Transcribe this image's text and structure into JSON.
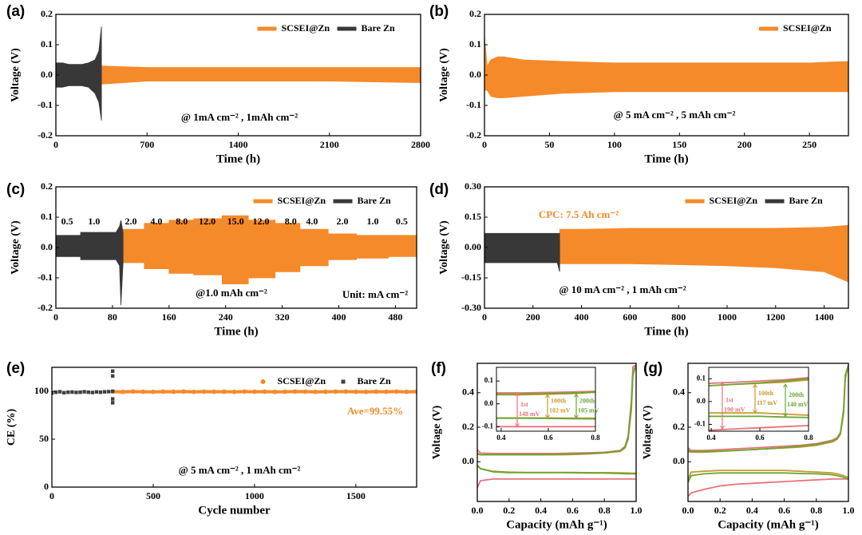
{
  "chart_data": [
    {
      "type": "band",
      "label": "(a)",
      "xlabel": "Time (h)",
      "ylabel": "Voltage (V)",
      "xlim": [
        0,
        2800
      ],
      "xticks": [
        0,
        700,
        1400,
        2100,
        2800
      ],
      "ylim": [
        -0.2,
        0.2
      ],
      "yticks": [
        -0.2,
        -0.1,
        {
          "value": 0,
          "label": "0.0"
        },
        0.1,
        0.2
      ],
      "annotations": [
        {
          "text": "@ 1mA cm⁻² , 1mAh cm⁻²"
        }
      ],
      "series": [
        {
          "name": "SCSEI@Zn",
          "color": "#f58a2a",
          "x": [
            350,
            700,
            1400,
            2100,
            2800
          ],
          "high": [
            0.03,
            0.025,
            0.025,
            0.025,
            0.025
          ],
          "low": [
            -0.03,
            -0.02,
            -0.02,
            -0.02,
            -0.025
          ]
        },
        {
          "name": "Bare Zn",
          "color": "#383838",
          "x": [
            0,
            50,
            100,
            150,
            200,
            250,
            300,
            330,
            350
          ],
          "high": [
            0.04,
            0.04,
            0.035,
            0.035,
            0.035,
            0.04,
            0.05,
            0.08,
            0.16
          ],
          "low": [
            -0.04,
            -0.04,
            -0.035,
            -0.035,
            -0.035,
            -0.04,
            -0.06,
            -0.09,
            -0.15
          ]
        }
      ]
    },
    {
      "type": "band",
      "label": "(b)",
      "xlabel": "Time (h)",
      "ylabel": "Voltage (V)",
      "xlim": [
        0,
        280
      ],
      "xticks": [
        0,
        50,
        100,
        150,
        200,
        250
      ],
      "ylim": [
        -0.2,
        0.2
      ],
      "yticks": [
        -0.2,
        -0.1,
        {
          "value": 0,
          "label": "0.0"
        },
        0.1,
        0.2
      ],
      "annotations": [
        {
          "text": "@ 5 mA cm⁻² , 5 mAh cm⁻²"
        }
      ],
      "series": [
        {
          "name": "SCSEI@Zn",
          "color": "#f58a2a",
          "x": [
            0,
            2,
            5,
            10,
            15,
            30,
            60,
            100,
            150,
            200,
            250,
            280
          ],
          "high": [
            0.13,
            0.03,
            0.05,
            0.06,
            0.06,
            0.05,
            0.045,
            0.04,
            0.04,
            0.04,
            0.04,
            0.045
          ],
          "low": [
            -0.05,
            -0.05,
            -0.07,
            -0.075,
            -0.075,
            -0.07,
            -0.06,
            -0.055,
            -0.055,
            -0.055,
            -0.055,
            -0.055
          ]
        }
      ]
    },
    {
      "type": "band",
      "label": "(c)",
      "xlabel": "Time (h)",
      "ylabel": "Voltage (V)",
      "xlim": [
        0,
        510
      ],
      "xticks": [
        0,
        80,
        160,
        240,
        320,
        400,
        480
      ],
      "ylim": [
        -0.2,
        0.2
      ],
      "yticks": [
        -0.2,
        -0.1,
        {
          "value": 0,
          "label": "0.0"
        },
        0.1,
        0.2
      ],
      "annotations": [
        {
          "text": "@1.0 mAh cm⁻²"
        },
        {
          "text": "Unit: mA cm⁻²"
        }
      ],
      "current_density": {
        "x": [
          16,
          54,
          106,
          142,
          178,
          214,
          254,
          290,
          332,
          362,
          405,
          448,
          489
        ],
        "labels": [
          "0.5",
          "1.0",
          "2.0",
          "4.0",
          "8.0",
          "12.0",
          "15.0",
          "12.0",
          "8.0",
          "4.0",
          "2.0",
          "1.0",
          "0.5"
        ]
      },
      "series": [
        {
          "name": "SCSEI@Zn",
          "color": "#f58a2a",
          "x": [
            95,
            125,
            125,
            160,
            160,
            195,
            195,
            235,
            235,
            272,
            272,
            310,
            310,
            345,
            345,
            385,
            385,
            425,
            425,
            470,
            470,
            510
          ],
          "high": [
            0.06,
            0.06,
            0.08,
            0.08,
            0.09,
            0.09,
            0.095,
            0.095,
            0.105,
            0.105,
            0.09,
            0.09,
            0.08,
            0.08,
            0.06,
            0.06,
            0.045,
            0.045,
            0.04,
            0.04,
            0.04,
            0.04
          ],
          "low": [
            -0.05,
            -0.05,
            -0.07,
            -0.07,
            -0.085,
            -0.085,
            -0.09,
            -0.09,
            -0.12,
            -0.12,
            -0.1,
            -0.1,
            -0.08,
            -0.08,
            -0.06,
            -0.06,
            -0.04,
            -0.04,
            -0.035,
            -0.035,
            -0.03,
            -0.03
          ]
        },
        {
          "name": "Bare Zn",
          "color": "#383838",
          "x": [
            0,
            35,
            35,
            85,
            90,
            92,
            95
          ],
          "high": [
            0.04,
            0.04,
            0.05,
            0.05,
            0.07,
            0.09,
            0.05
          ],
          "low": [
            -0.03,
            -0.03,
            -0.04,
            -0.04,
            -0.06,
            -0.19,
            -0.05
          ]
        }
      ]
    },
    {
      "type": "band",
      "label": "(d)",
      "xlabel": "Time (h)",
      "ylabel": "Voltage (V)",
      "xlim": [
        0,
        1500
      ],
      "xticks": [
        0,
        200,
        400,
        600,
        800,
        1000,
        1200,
        1400
      ],
      "ylim": [
        -0.3,
        0.3
      ],
      "yticks": [
        {
          "value": -0.3,
          "label": "-0.30"
        },
        -0.15,
        {
          "value": 0,
          "label": "0.00"
        },
        0.15,
        {
          "value": 0.3,
          "label": "0.30"
        }
      ],
      "annotations": [
        {
          "text": "CPC: 7.5 Ah cm⁻²",
          "color": "#f58a2a"
        },
        {
          "text": "@ 10 mA cm⁻² , 1 mAh cm⁻²"
        }
      ],
      "series": [
        {
          "name": "SCSEI@Zn",
          "color": "#f58a2a",
          "x": [
            310,
            400,
            600,
            800,
            1000,
            1200,
            1400,
            1500
          ],
          "high": [
            0.09,
            0.09,
            0.095,
            0.095,
            0.095,
            0.095,
            0.1,
            0.11
          ],
          "low": [
            -0.08,
            -0.08,
            -0.08,
            -0.085,
            -0.09,
            -0.1,
            -0.12,
            -0.17
          ]
        },
        {
          "name": "Bare Zn",
          "color": "#383838",
          "x": [
            0,
            300,
            310
          ],
          "high": [
            0.07,
            0.07,
            0.07
          ],
          "low": [
            -0.075,
            -0.075,
            -0.12
          ]
        }
      ]
    },
    {
      "type": "scatter",
      "label": "(e)",
      "xlabel": "Cycle number",
      "ylabel": "CE (%)",
      "xlim": [
        0,
        1800
      ],
      "xticks": [
        0,
        500,
        1000,
        1500
      ],
      "ylim": [
        0,
        125
      ],
      "yticks": [
        0,
        50,
        100
      ],
      "annotations": [
        {
          "text": "Ave=99.55%",
          "color": "#f58a2a"
        },
        {
          "text": "@ 5 mA cm⁻² , 1 mAh cm⁻²"
        }
      ],
      "series": [
        {
          "name": "SCSEI@Zn",
          "color": "#f58a2a",
          "marker": "circle",
          "x": [
            300,
            350,
            400,
            450,
            500,
            550,
            600,
            650,
            700,
            750,
            800,
            850,
            900,
            950,
            1000,
            1050,
            1100,
            1150,
            1200,
            1250,
            1300,
            1350,
            1400,
            1450,
            1500,
            1550,
            1600,
            1650,
            1700,
            1750,
            1800
          ],
          "values": [
            99.6,
            99.4,
            99.7,
            99.5,
            99.4,
            99.6,
            99.5,
            99.7,
            99.4,
            99.6,
            99.5,
            99.6,
            99.4,
            99.7,
            99.5,
            99.6,
            99.4,
            99.5,
            99.7,
            99.6,
            99.4,
            99.5,
            99.6,
            99.7,
            99.5,
            99.4,
            99.6,
            99.5,
            99.7,
            99.4,
            99.6
          ]
        },
        {
          "name": "Bare Zn",
          "color": "#404040",
          "marker": "square",
          "x": [
            0,
            20,
            40,
            60,
            80,
            100,
            120,
            140,
            160,
            180,
            200,
            220,
            240,
            260,
            280,
            300,
            300,
            300,
            300,
            300
          ],
          "values": [
            98,
            99,
            99.5,
            98.5,
            99,
            99.2,
            98.8,
            99,
            99.5,
            99,
            98.7,
            99.3,
            99,
            99.4,
            99.6,
            100,
            121,
            116,
            92,
            88
          ]
        }
      ]
    },
    {
      "type": "line",
      "label": "(f)",
      "xlabel": "Capacity (mAh g⁻¹)",
      "ylabel": "Voltage (V)",
      "xlim": [
        0,
        1
      ],
      "xticks": [
        {
          "value": 0,
          "label": "0.0"
        },
        0.2,
        0.4,
        0.6,
        0.8,
        {
          "value": 1,
          "label": "1.0"
        }
      ],
      "ylim": [
        -0.23,
        0.57
      ],
      "yticks": [
        {
          "value": 0,
          "label": "0.0"
        },
        0.2,
        0.4
      ],
      "x": [
        0,
        0.02,
        0.1,
        0.2,
        0.3,
        0.4,
        0.5,
        0.6,
        0.7,
        0.8,
        0.9,
        0.93,
        0.95,
        0.97,
        0.98,
        1
      ],
      "inset": {
        "xlim": [
          0.38,
          0.8
        ],
        "ylim": [
          -0.12,
          0.16
        ],
        "xticks": [
          0.4,
          0.6,
          0.8
        ],
        "yticks": [
          -0.1,
          {
            "value": 0,
            "label": "0.0"
          },
          0.1
        ]
      },
      "series": [
        {
          "name": "1st",
          "gap_label": "148 mV",
          "color": "#e8737a",
          "charge": [
            0.07,
            0.05,
            0.048,
            0.048,
            0.048,
            0.048,
            0.048,
            0.05,
            0.052,
            0.055,
            0.065,
            0.09,
            0.15,
            0.35,
            0.55,
            0.56
          ],
          "discharge": [
            -0.15,
            -0.11,
            -0.1,
            -0.1,
            -0.1,
            -0.1,
            -0.1,
            -0.1,
            -0.1,
            -0.1,
            -0.1,
            -0.1,
            -0.1,
            -0.1,
            -0.1,
            -0.1
          ]
        },
        {
          "name": "100th",
          "gap_label": "102 mV",
          "color": "#c99a2e",
          "charge": [
            0.05,
            0.04,
            0.04,
            0.04,
            0.04,
            0.04,
            0.04,
            0.042,
            0.045,
            0.05,
            0.06,
            0.08,
            0.13,
            0.3,
            0.5,
            0.56
          ],
          "discharge": [
            -0.02,
            -0.04,
            -0.055,
            -0.06,
            -0.062,
            -0.062,
            -0.062,
            -0.062,
            -0.063,
            -0.063,
            -0.064,
            -0.065,
            -0.065,
            -0.066,
            -0.066,
            -0.066
          ]
        },
        {
          "name": "200th",
          "gap_label": "105 mV",
          "color": "#6aa532",
          "charge": [
            0.045,
            0.04,
            0.042,
            0.042,
            0.042,
            0.042,
            0.043,
            0.045,
            0.047,
            0.052,
            0.062,
            0.085,
            0.14,
            0.32,
            0.52,
            0.56
          ],
          "discharge": [
            -0.02,
            -0.04,
            -0.058,
            -0.063,
            -0.063,
            -0.063,
            -0.063,
            -0.064,
            -0.065,
            -0.066,
            -0.068,
            -0.07,
            -0.07,
            -0.07,
            -0.07,
            -0.07
          ]
        }
      ]
    },
    {
      "type": "line",
      "label": "(g)",
      "xlabel": "Capacity (mAh g⁻¹)",
      "ylabel": "Voltage (V)",
      "xlim": [
        0,
        1
      ],
      "xticks": [
        {
          "value": 0,
          "label": "0.0"
        },
        0.2,
        0.4,
        0.6,
        0.8,
        {
          "value": 1,
          "label": "1.0"
        }
      ],
      "ylim": [
        -0.23,
        0.57
      ],
      "yticks": [
        {
          "value": 0,
          "label": "0.0"
        },
        0.2,
        0.4
      ],
      "x": [
        0,
        0.02,
        0.1,
        0.2,
        0.3,
        0.4,
        0.5,
        0.6,
        0.7,
        0.8,
        0.9,
        0.93,
        0.95,
        0.97,
        0.98,
        1
      ],
      "inset": {
        "xlim": [
          0.39,
          0.8
        ],
        "ylim": [
          -0.13,
          0.15
        ],
        "xticks": [
          0.4,
          0.6,
          0.8
        ],
        "yticks": [
          -0.1,
          {
            "value": 0,
            "label": "0.0"
          },
          0.1
        ]
      },
      "series": [
        {
          "name": "1st",
          "gap_label": "190 mV",
          "color": "#e8737a",
          "charge": [
            0.08,
            0.065,
            0.065,
            0.07,
            0.075,
            0.08,
            0.085,
            0.09,
            0.095,
            0.105,
            0.125,
            0.14,
            0.17,
            0.3,
            0.5,
            0.56
          ],
          "discharge": [
            -0.2,
            -0.18,
            -0.16,
            -0.14,
            -0.13,
            -0.125,
            -0.12,
            -0.115,
            -0.11,
            -0.105,
            -0.1,
            -0.1,
            -0.1,
            -0.1,
            -0.1,
            -0.1
          ]
        },
        {
          "name": "100th",
          "gap_label": "117 mV",
          "color": "#c99a2e",
          "charge": [
            0.06,
            0.055,
            0.055,
            0.06,
            0.065,
            0.07,
            0.075,
            0.08,
            0.085,
            0.095,
            0.115,
            0.13,
            0.16,
            0.28,
            0.48,
            0.56
          ],
          "discharge": [
            -0.1,
            -0.06,
            -0.055,
            -0.05,
            -0.05,
            -0.05,
            -0.05,
            -0.05,
            -0.055,
            -0.06,
            -0.065,
            -0.07,
            -0.075,
            -0.08,
            -0.085,
            -0.09
          ]
        },
        {
          "name": "200th",
          "gap_label": "140 mV",
          "color": "#6aa532",
          "charge": [
            0.065,
            0.06,
            0.06,
            0.062,
            0.066,
            0.07,
            0.076,
            0.082,
            0.09,
            0.1,
            0.12,
            0.135,
            0.165,
            0.3,
            0.5,
            0.56
          ],
          "discharge": [
            -0.12,
            -0.08,
            -0.07,
            -0.065,
            -0.065,
            -0.065,
            -0.065,
            -0.065,
            -0.068,
            -0.07,
            -0.075,
            -0.08,
            -0.085,
            -0.09,
            -0.095,
            -0.1
          ]
        }
      ]
    }
  ]
}
